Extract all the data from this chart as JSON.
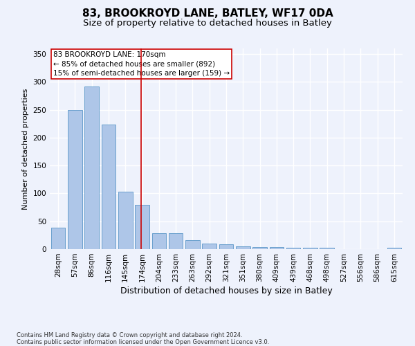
{
  "title1": "83, BROOKROYD LANE, BATLEY, WF17 0DA",
  "title2": "Size of property relative to detached houses in Batley",
  "xlabel": "Distribution of detached houses by size in Batley",
  "ylabel": "Number of detached properties",
  "footnote": "Contains HM Land Registry data © Crown copyright and database right 2024.\nContains public sector information licensed under the Open Government Licence v3.0.",
  "bar_labels": [
    "28sqm",
    "57sqm",
    "86sqm",
    "116sqm",
    "145sqm",
    "174sqm",
    "204sqm",
    "233sqm",
    "263sqm",
    "292sqm",
    "321sqm",
    "351sqm",
    "380sqm",
    "409sqm",
    "439sqm",
    "468sqm",
    "498sqm",
    "527sqm",
    "556sqm",
    "586sqm",
    "615sqm"
  ],
  "bar_values": [
    38,
    250,
    292,
    224,
    103,
    79,
    29,
    28,
    16,
    10,
    9,
    5,
    4,
    4,
    3,
    3,
    3,
    0,
    0,
    0,
    3
  ],
  "bar_color": "#aec6e8",
  "bar_edge_color": "#5a96c8",
  "vline_color": "#cc0000",
  "annotation_text": "83 BROOKROYD LANE: 170sqm\n← 85% of detached houses are smaller (892)\n15% of semi-detached houses are larger (159) →",
  "annotation_box_color": "#ffffff",
  "annotation_box_edge": "#cc0000",
  "annotation_fontsize": 7.5,
  "ylim": [
    0,
    360
  ],
  "yticks": [
    0,
    50,
    100,
    150,
    200,
    250,
    300,
    350
  ],
  "background_color": "#eef2fc",
  "grid_color": "#ffffff",
  "title1_fontsize": 11,
  "title2_fontsize": 9.5,
  "xlabel_fontsize": 9,
  "ylabel_fontsize": 8,
  "tick_fontsize": 7.5,
  "footnote_fontsize": 6
}
